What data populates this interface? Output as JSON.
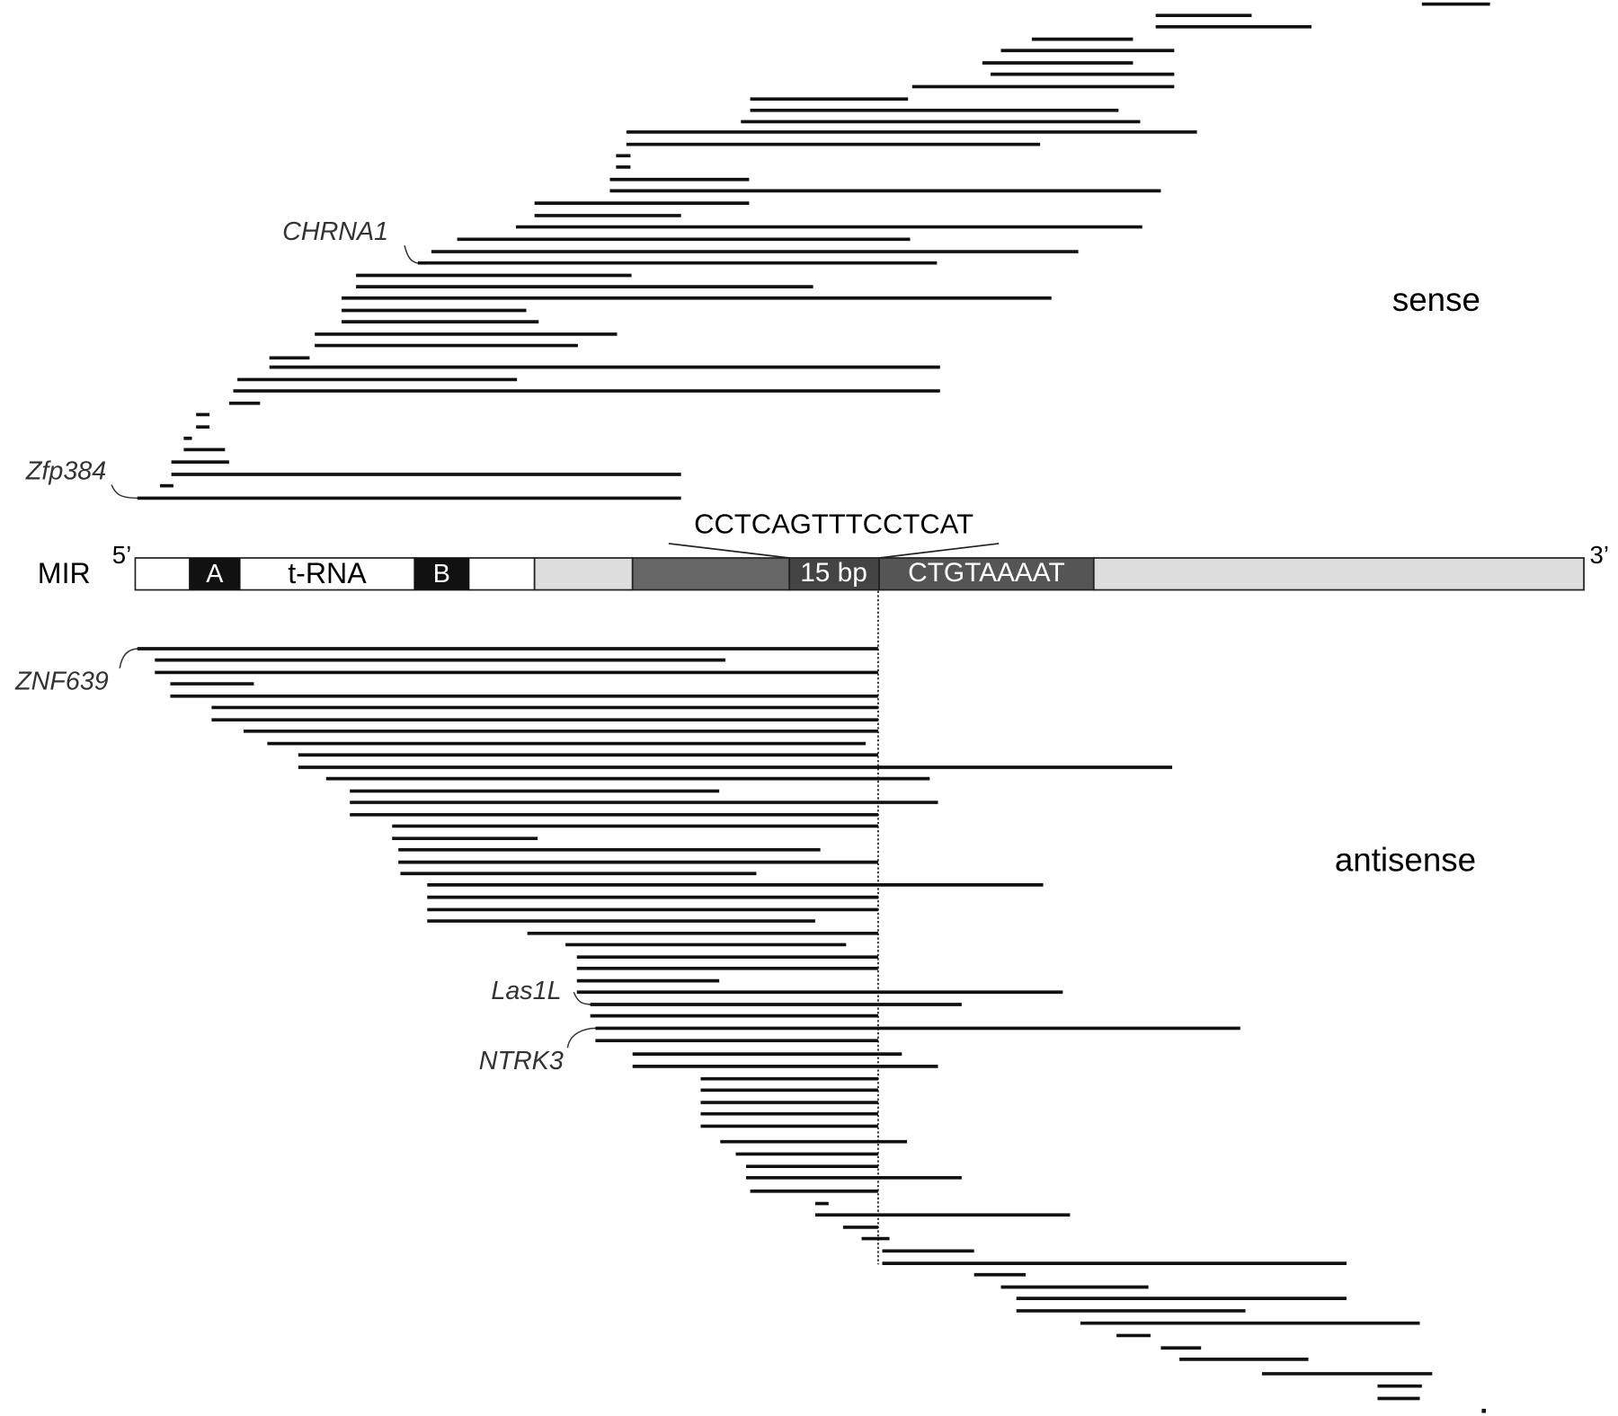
{
  "element": {
    "name": "MIR",
    "five_prime": "5’",
    "three_prime": "3’",
    "box_a": "A",
    "trna": "t-RNA",
    "box_b": "B",
    "spacer": "15 bp",
    "core": "CTGTAAAAT",
    "sequence": "CCTCAGTTTCCTCAT"
  },
  "strands": {
    "sense": "sense",
    "antisense": "antisense"
  },
  "genes": [
    "CHRNA1",
    "Zfp384",
    "ZNF639",
    "Las1L",
    "NTRK3"
  ]
}
